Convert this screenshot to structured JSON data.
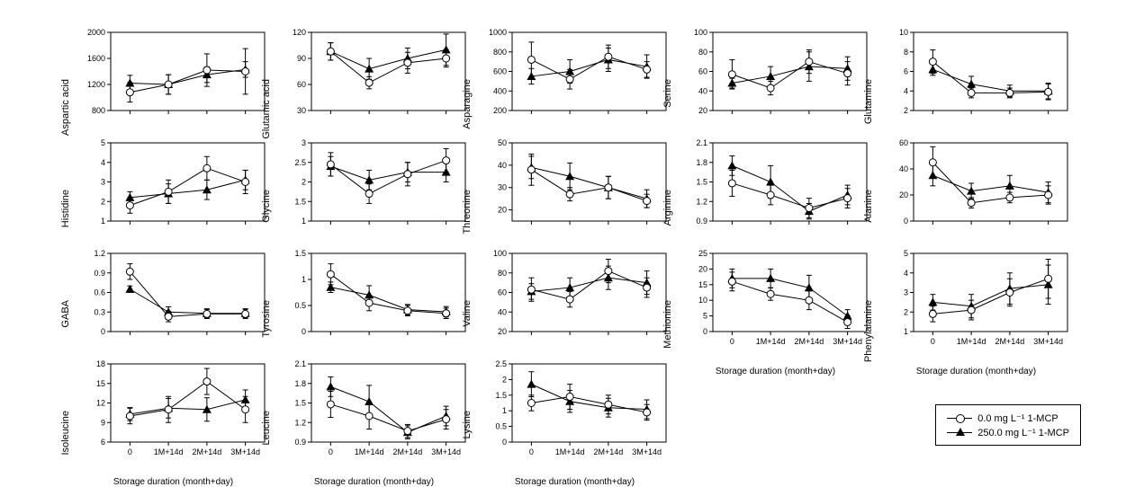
{
  "background_color": "#ffffff",
  "axis_color": "#000000",
  "series": {
    "a": {
      "label": "0.0 mg L⁻¹ 1-MCP",
      "marker": "open-circle",
      "color": "#000000",
      "fill": "#ffffff"
    },
    "b": {
      "label": "250.0 mg L⁻¹ 1-MCP",
      "marker": "filled-triangle",
      "color": "#000000",
      "fill": "#000000"
    }
  },
  "x_categories": [
    "0",
    "1M+14d",
    "2M+14d",
    "3M+14d"
  ],
  "x_axis_title": "Storage duration (month+day)",
  "panels": [
    {
      "id": "aspartic",
      "title": "Aspartic acid",
      "row": 0,
      "col": 0,
      "ylim": [
        800,
        2000
      ],
      "yticks": [
        800,
        1200,
        1600,
        2000
      ],
      "a": {
        "y": [
          1080,
          1200,
          1420,
          1400
        ],
        "err": [
          150,
          150,
          250,
          350
        ]
      },
      "b": {
        "y": [
          1220,
          1200,
          1350,
          1430
        ],
        "err": [
          120,
          150,
          120,
          120
        ]
      },
      "show_x_ticks": false
    },
    {
      "id": "glutamic",
      "title": "Glutamic acid",
      "row": 0,
      "col": 1,
      "ylim": [
        30,
        120
      ],
      "yticks": [
        30,
        60,
        90,
        120
      ],
      "a": {
        "y": [
          98,
          62,
          85,
          90
        ],
        "err": [
          10,
          7,
          12,
          10
        ]
      },
      "b": {
        "y": [
          98,
          78,
          90,
          100
        ],
        "err": [
          10,
          12,
          12,
          18
        ]
      },
      "show_x_ticks": false
    },
    {
      "id": "asparagine",
      "title": "Asparagine",
      "row": 0,
      "col": 2,
      "ylim": [
        200,
        1000
      ],
      "yticks": [
        200,
        400,
        600,
        800,
        1000
      ],
      "a": {
        "y": [
          720,
          520,
          750,
          620
        ],
        "err": [
          180,
          100,
          120,
          80
        ]
      },
      "b": {
        "y": [
          550,
          600,
          720,
          650
        ],
        "err": [
          80,
          120,
          120,
          120
        ]
      },
      "show_x_ticks": false
    },
    {
      "id": "serine",
      "title": "Serine",
      "row": 0,
      "col": 3,
      "ylim": [
        20,
        100
      ],
      "yticks": [
        20,
        40,
        60,
        80,
        100
      ],
      "a": {
        "y": [
          57,
          43,
          70,
          58
        ],
        "err": [
          15,
          7,
          12,
          12
        ]
      },
      "b": {
        "y": [
          48,
          55,
          65,
          63
        ],
        "err": [
          5,
          10,
          15,
          12
        ]
      },
      "show_x_ticks": false
    },
    {
      "id": "glutamine",
      "title": "Glutamine",
      "row": 0,
      "col": 4,
      "ylim": [
        2,
        10
      ],
      "yticks": [
        2,
        4,
        6,
        8,
        10
      ],
      "a": {
        "y": [
          7.0,
          3.8,
          3.8,
          3.9
        ],
        "err": [
          1.2,
          0.5,
          0.5,
          0.8
        ]
      },
      "b": {
        "y": [
          6.2,
          4.7,
          4.0,
          4.0
        ],
        "err": [
          0.6,
          0.8,
          0.6,
          0.8
        ]
      },
      "show_x_ticks": false
    },
    {
      "id": "histidine",
      "title": "Histidine",
      "row": 1,
      "col": 0,
      "ylim": [
        1,
        5
      ],
      "yticks": [
        1,
        2,
        3,
        4,
        5
      ],
      "a": {
        "y": [
          1.8,
          2.5,
          3.7,
          3.0
        ],
        "err": [
          0.4,
          0.6,
          0.6,
          0.6
        ]
      },
      "b": {
        "y": [
          2.2,
          2.4,
          2.6,
          3.1
        ],
        "err": [
          0.3,
          0.5,
          0.5,
          0.5
        ]
      },
      "show_x_ticks": false
    },
    {
      "id": "glycine",
      "title": "Glycine",
      "row": 1,
      "col": 1,
      "ylim": [
        1.0,
        3.0
      ],
      "yticks": [
        1.0,
        1.5,
        2.0,
        2.5,
        3.0
      ],
      "a": {
        "y": [
          2.45,
          1.7,
          2.2,
          2.55
        ],
        "err": [
          0.3,
          0.25,
          0.3,
          0.3
        ]
      },
      "b": {
        "y": [
          2.4,
          2.05,
          2.25,
          2.25
        ],
        "err": [
          0.25,
          0.25,
          0.25,
          0.25
        ]
      },
      "show_x_ticks": false
    },
    {
      "id": "threonine",
      "title": "Threonine",
      "row": 1,
      "col": 2,
      "ylim": [
        15,
        50
      ],
      "yticks": [
        20,
        30,
        40,
        50
      ],
      "a": {
        "y": [
          38,
          27,
          30,
          24
        ],
        "err": [
          7,
          3,
          5,
          3
        ]
      },
      "b": {
        "y": [
          39,
          35,
          30,
          25
        ],
        "err": [
          5,
          6,
          5,
          4
        ]
      },
      "show_x_ticks": false
    },
    {
      "id": "arginine",
      "title": "Arginine",
      "row": 1,
      "col": 3,
      "ylim": [
        0.9,
        2.1
      ],
      "yticks": [
        0.9,
        1.2,
        1.5,
        1.8,
        2.1
      ],
      "a": {
        "y": [
          1.48,
          1.3,
          1.1,
          1.25
        ],
        "err": [
          0.2,
          0.15,
          0.15,
          0.15
        ]
      },
      "b": {
        "y": [
          1.75,
          1.5,
          1.05,
          1.3
        ],
        "err": [
          0.15,
          0.25,
          0.12,
          0.15
        ]
      },
      "show_x_ticks": false
    },
    {
      "id": "alanine",
      "title": "Alanine",
      "row": 1,
      "col": 4,
      "ylim": [
        0,
        60
      ],
      "yticks": [
        0,
        20,
        40,
        60
      ],
      "a": {
        "y": [
          45,
          14,
          18,
          20
        ],
        "err": [
          12,
          4,
          4,
          7
        ]
      },
      "b": {
        "y": [
          35,
          23,
          27,
          22
        ],
        "err": [
          8,
          6,
          8,
          8
        ]
      },
      "show_x_ticks": false
    },
    {
      "id": "gaba",
      "title": "GABA",
      "row": 2,
      "col": 0,
      "ylim": [
        0.0,
        1.2
      ],
      "yticks": [
        0.0,
        0.3,
        0.6,
        0.9,
        1.2
      ],
      "a": {
        "y": [
          0.92,
          0.23,
          0.27,
          0.27
        ],
        "err": [
          0.12,
          0.08,
          0.07,
          0.07
        ]
      },
      "b": {
        "y": [
          0.65,
          0.3,
          0.28,
          0.28
        ],
        "err": [
          0.05,
          0.08,
          0.07,
          0.07
        ]
      },
      "show_x_ticks": false
    },
    {
      "id": "tyrosine",
      "title": "Tyrosine",
      "row": 2,
      "col": 1,
      "ylim": [
        0.0,
        1.5
      ],
      "yticks": [
        0.0,
        0.5,
        1.0,
        1.5
      ],
      "a": {
        "y": [
          1.1,
          0.55,
          0.4,
          0.35
        ],
        "err": [
          0.2,
          0.15,
          0.1,
          0.1
        ]
      },
      "b": {
        "y": [
          0.85,
          0.7,
          0.42,
          0.38
        ],
        "err": [
          0.1,
          0.18,
          0.1,
          0.1
        ]
      },
      "show_x_ticks": false
    },
    {
      "id": "valine",
      "title": "Valine",
      "row": 2,
      "col": 2,
      "ylim": [
        20,
        100
      ],
      "yticks": [
        20,
        40,
        60,
        80,
        100
      ],
      "a": {
        "y": [
          63,
          53,
          82,
          65
        ],
        "err": [
          12,
          8,
          12,
          10
        ]
      },
      "b": {
        "y": [
          61,
          65,
          75,
          70
        ],
        "err": [
          8,
          10,
          12,
          12
        ]
      },
      "show_x_ticks": false
    },
    {
      "id": "methionine",
      "title": "Methionine",
      "row": 2,
      "col": 3,
      "ylim": [
        0,
        25
      ],
      "yticks": [
        0,
        5,
        10,
        15,
        20,
        25
      ],
      "a": {
        "y": [
          16,
          12,
          10,
          3
        ],
        "err": [
          3,
          2,
          3,
          2
        ]
      },
      "b": {
        "y": [
          17,
          17,
          14,
          5
        ],
        "err": [
          3,
          3,
          4,
          2
        ]
      },
      "show_x_ticks": true,
      "show_x_title": true
    },
    {
      "id": "phenylalanine",
      "title": "Phenylalanine",
      "row": 2,
      "col": 4,
      "ylim": [
        1,
        5
      ],
      "yticks": [
        1,
        2,
        3,
        4,
        5
      ],
      "a": {
        "y": [
          1.9,
          2.1,
          3.0,
          3.7
        ],
        "err": [
          0.4,
          0.5,
          0.7,
          1.0
        ]
      },
      "b": {
        "y": [
          2.5,
          2.3,
          3.2,
          3.4
        ],
        "err": [
          0.4,
          0.6,
          0.8,
          1.0
        ]
      },
      "show_x_ticks": true,
      "show_x_title": true
    },
    {
      "id": "isoleucine",
      "title": "Isoleucine",
      "row": 3,
      "col": 0,
      "ylim": [
        6,
        18
      ],
      "yticks": [
        6,
        9,
        12,
        15,
        18
      ],
      "a": {
        "y": [
          10.0,
          11.0,
          15.3,
          11.0
        ],
        "err": [
          1.2,
          2.0,
          2.0,
          2.0
        ]
      },
      "b": {
        "y": [
          10.3,
          11.2,
          11.0,
          12.5
        ],
        "err": [
          1.0,
          1.5,
          1.8,
          1.5
        ]
      },
      "show_x_ticks": true,
      "show_x_title": true
    },
    {
      "id": "leucine",
      "title": "Leucine",
      "row": 3,
      "col": 1,
      "ylim": [
        0.9,
        2.1
      ],
      "yticks": [
        0.9,
        1.2,
        1.5,
        1.8,
        2.1
      ],
      "a": {
        "y": [
          1.48,
          1.3,
          1.07,
          1.25
        ],
        "err": [
          0.2,
          0.2,
          0.1,
          0.15
        ]
      },
      "b": {
        "y": [
          1.75,
          1.52,
          1.05,
          1.3
        ],
        "err": [
          0.15,
          0.25,
          0.1,
          0.15
        ]
      },
      "show_x_ticks": true,
      "show_x_title": true
    },
    {
      "id": "lysine",
      "title": "Lysine",
      "row": 3,
      "col": 2,
      "ylim": [
        0.0,
        2.5
      ],
      "yticks": [
        0.0,
        0.5,
        1.0,
        1.5,
        2.0,
        2.5
      ],
      "a": {
        "y": [
          1.25,
          1.45,
          1.2,
          0.95
        ],
        "err": [
          0.25,
          0.4,
          0.3,
          0.25
        ]
      },
      "b": {
        "y": [
          1.85,
          1.3,
          1.1,
          1.05
        ],
        "err": [
          0.4,
          0.35,
          0.3,
          0.3
        ]
      },
      "show_x_ticks": true,
      "show_x_title": true
    }
  ],
  "tick_fontsize": 9,
  "label_fontsize": 11,
  "line_width": 1,
  "marker_size": 4,
  "err_cap": 3
}
